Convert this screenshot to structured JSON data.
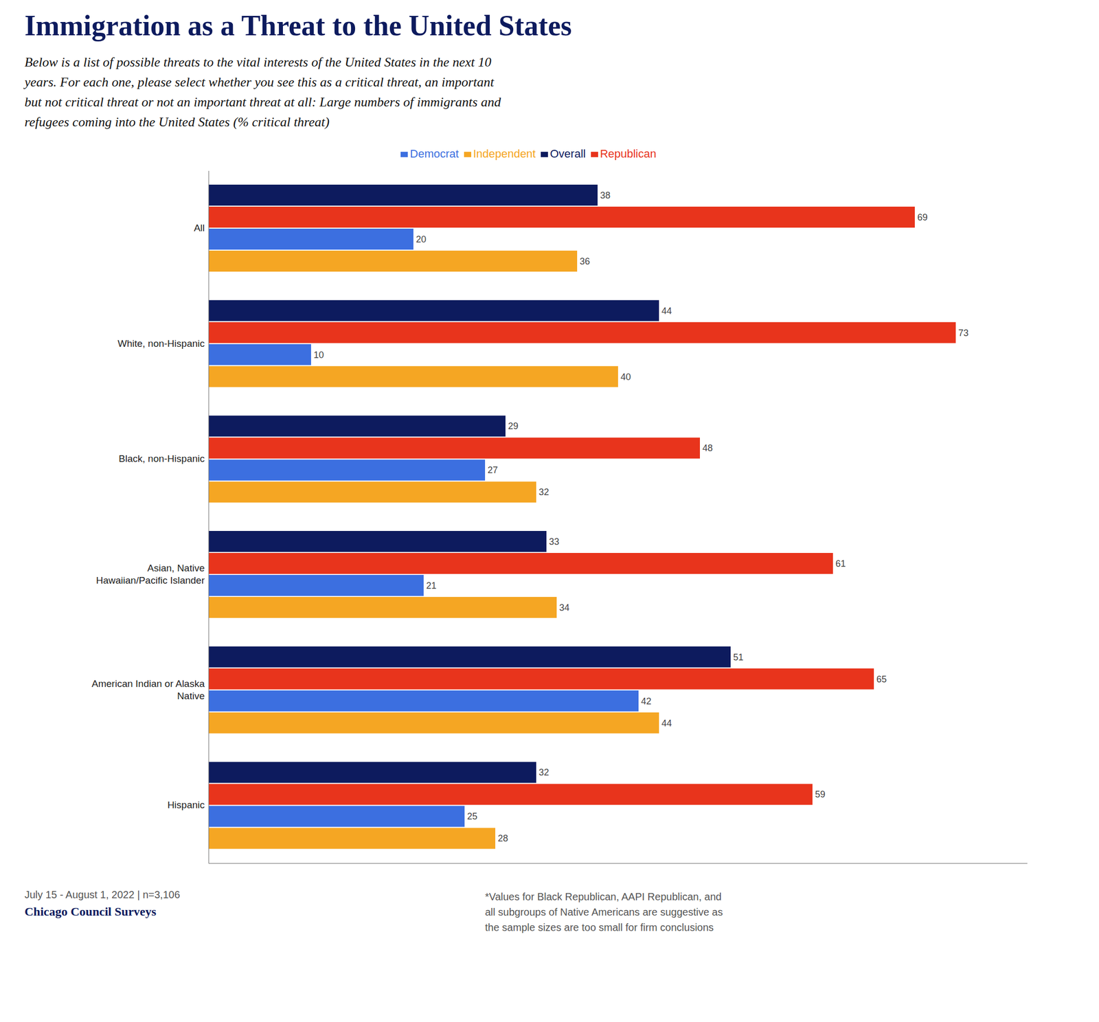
{
  "chart_data": {
    "type": "bar",
    "orientation": "horizontal",
    "title": "Immigration as a Threat to the United States",
    "subtitle": "Below is a list of possible threats to the vital interests of the United States in the next 10\nyears. For each one, please select whether you see this as a critical threat, an important\nbut not critical threat or not an important threat at all: Large numbers of immigrants and\nrefugees coming into the United States (% critical threat)",
    "categories": [
      "All",
      "White, non-Hispanic",
      "Black, non-Hispanic",
      "Asian, Native\nHawaiian/Pacific Islander",
      "American Indian or Alaska\nNative",
      "Hispanic"
    ],
    "series": [
      {
        "name": "Overall",
        "color": "#0d1b5e",
        "values": [
          38,
          44,
          29,
          33,
          51,
          32
        ]
      },
      {
        "name": "Republican",
        "color": "#e8341c",
        "values": [
          69,
          73,
          48,
          61,
          65,
          59
        ]
      },
      {
        "name": "Democrat",
        "color": "#3c6fe0",
        "values": [
          20,
          10,
          27,
          21,
          42,
          25
        ]
      },
      {
        "name": "Independent",
        "color": "#f5a623",
        "values": [
          36,
          40,
          32,
          34,
          44,
          28
        ]
      }
    ],
    "xlim": [
      0,
      80
    ],
    "tick_labels": "y",
    "data_labels": true,
    "grid": false,
    "legend": "top",
    "annotations": [
      "July 15 - August 1, 2022 | n=3,106",
      "Chicago Council Surveys",
      "*Values for Black Republican, AAPI Republican, and\nall subgroups of Native Americans are suggestive as\nthe sample sizes are too small for firm conclusions"
    ]
  }
}
